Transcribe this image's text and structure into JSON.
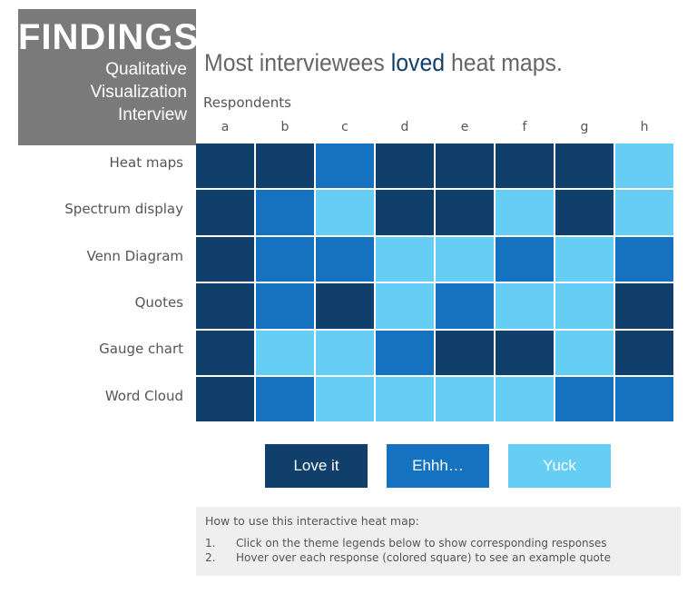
{
  "header": {
    "findings": "FINDINGS",
    "sub1": "Qualitative",
    "sub2": "Visualization",
    "sub3": "Interview",
    "headline_pre": "Most interviewees ",
    "headline_accent": "loved",
    "headline_post": " heat maps."
  },
  "colors": {
    "love": "#0f3f6a",
    "ehhh": "#1572c0",
    "yuck": "#66cef5",
    "accent": "#0f3f6a"
  },
  "chart_data": {
    "type": "heatmap",
    "title": "Most interviewees loved heat maps.",
    "xlabel": "Respondents",
    "x": [
      "a",
      "b",
      "c",
      "d",
      "e",
      "f",
      "g",
      "h"
    ],
    "y": [
      "Heat maps",
      "Spectrum display",
      "Venn Diagram",
      "Quotes",
      "Gauge chart",
      "Word Cloud"
    ],
    "categories": [
      "Love it",
      "Ehhh…",
      "Yuck"
    ],
    "values": [
      [
        "Love it",
        "Love it",
        "Ehhh…",
        "Love it",
        "Love it",
        "Love it",
        "Love it",
        "Yuck"
      ],
      [
        "Love it",
        "Ehhh…",
        "Yuck",
        "Love it",
        "Love it",
        "Yuck",
        "Love it",
        "Yuck"
      ],
      [
        "Love it",
        "Ehhh…",
        "Ehhh…",
        "Yuck",
        "Yuck",
        "Ehhh…",
        "Yuck",
        "Ehhh…"
      ],
      [
        "Love it",
        "Ehhh…",
        "Love it",
        "Yuck",
        "Ehhh…",
        "Yuck",
        "Yuck",
        "Love it"
      ],
      [
        "Love it",
        "Yuck",
        "Yuck",
        "Ehhh…",
        "Love it",
        "Love it",
        "Yuck",
        "Love it"
      ],
      [
        "Love it",
        "Ehhh…",
        "Yuck",
        "Yuck",
        "Yuck",
        "Yuck",
        "Ehhh…",
        "Ehhh…"
      ]
    ]
  },
  "legend": [
    {
      "label": "Love it",
      "key": "love"
    },
    {
      "label": "Ehhh…",
      "key": "ehhh"
    },
    {
      "label": "Yuck",
      "key": "yuck"
    }
  ],
  "howto": {
    "title": "How to use this interactive heat map:",
    "items": [
      {
        "num": "1.",
        "text": "Click on the theme legends below to show corresponding responses"
      },
      {
        "num": "2.",
        "text": "Hover over each response (colored square) to see an example quote"
      }
    ]
  }
}
